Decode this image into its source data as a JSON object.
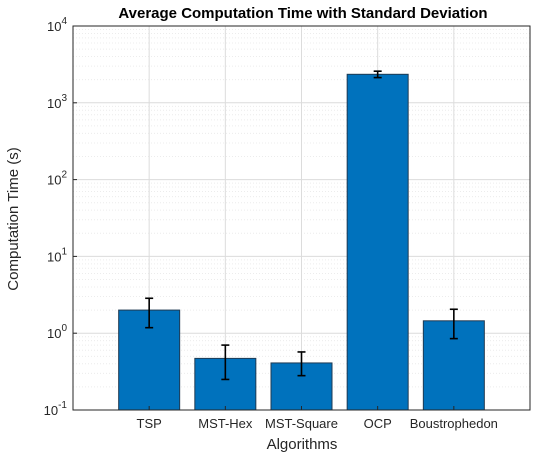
{
  "chart_data": {
    "type": "bar",
    "title": "Average Computation Time with Standard Deviation",
    "xlabel": "Algorithms",
    "ylabel": "Computation Time (s)",
    "yscale": "log",
    "ylim": [
      0.1,
      10000
    ],
    "grid": true,
    "categories": [
      "TSP",
      "MST-Hex",
      "MST-Square",
      "OCP",
      "Boustrophedon"
    ],
    "values": [
      2.0,
      0.47,
      0.41,
      2350,
      1.45
    ],
    "error_low": [
      1.18,
      0.25,
      0.28,
      2130,
      0.85
    ],
    "error_high": [
      2.85,
      0.7,
      0.57,
      2580,
      2.05
    ],
    "y_ticks": [
      {
        "base": "10",
        "exp": "-1"
      },
      {
        "base": "10",
        "exp": "0"
      },
      {
        "base": "10",
        "exp": "1"
      },
      {
        "base": "10",
        "exp": "2"
      },
      {
        "base": "10",
        "exp": "3"
      },
      {
        "base": "10",
        "exp": "4"
      }
    ],
    "colors": {
      "bar": "#0072bd",
      "bar_edge": "#1f3a52",
      "error_bar": "#000000",
      "axis": "#262626",
      "grid_major": "#dcdcdc",
      "grid_minor": "#ececec"
    }
  }
}
